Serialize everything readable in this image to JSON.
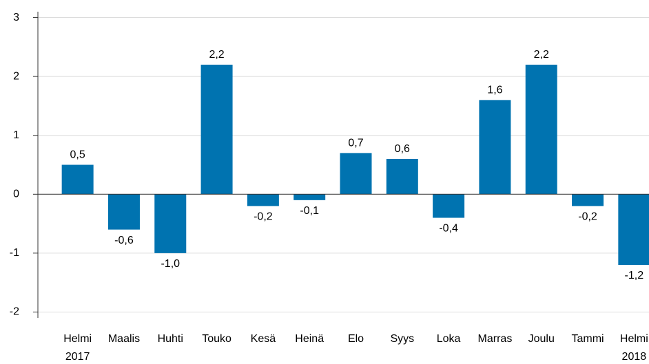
{
  "chart_data": {
    "type": "bar",
    "categories": [
      "Helmi 2017",
      "Maalis",
      "Huhti",
      "Touko",
      "Kesä",
      "Heinä",
      "Elo",
      "Syys",
      "Loka",
      "Marras",
      "Joulu",
      "Tammi",
      "Helmi 2018"
    ],
    "values": [
      0.5,
      -0.6,
      -1.0,
      2.2,
      -0.2,
      -0.1,
      0.7,
      0.6,
      -0.4,
      1.6,
      2.2,
      -0.2,
      -1.2
    ],
    "value_labels": [
      "0,5",
      "-0,6",
      "-1,0",
      "2,2",
      "-0,2",
      "-0,1",
      "0,7",
      "0,6",
      "-0,4",
      "1,6",
      "2,2",
      "-0,2",
      "-1,2"
    ],
    "color": "#0073b0",
    "ylim": [
      -2.1,
      3.1
    ],
    "yticks": [
      -2,
      -1,
      0,
      1,
      2,
      3
    ],
    "grid": true
  }
}
